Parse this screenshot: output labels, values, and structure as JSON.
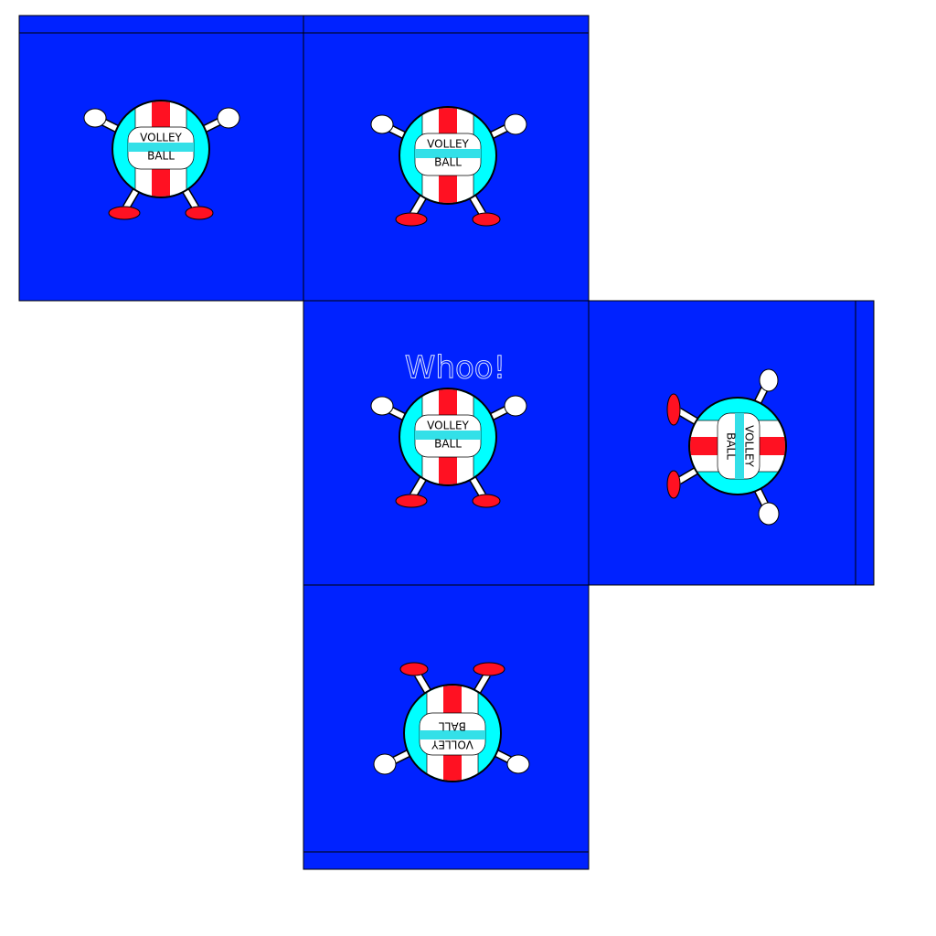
{
  "panels": [
    {
      "ball_text": [
        "VOLLEY",
        "BALL"
      ]
    },
    {
      "ball_text": [
        "VOLLEY",
        "BALL"
      ]
    },
    {
      "ball_text": [
        "VOLLEY",
        "BALL"
      ],
      "caption": "Whoo!"
    },
    {
      "ball_text": [
        "VOLLEY",
        "BALL"
      ]
    },
    {
      "ball_text": [
        "VOLLEY",
        "BALL"
      ]
    }
  ]
}
